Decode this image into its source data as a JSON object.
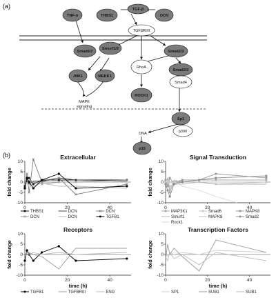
{
  "panel_a": {
    "label": "(a)",
    "nodes": {
      "tgfb": "TGF-β",
      "tnfa": "TNF-α",
      "thbs1": "THBS1",
      "dcn": "DCN",
      "receptor": "TGFβRI/II",
      "smad67": "Smad6/7",
      "smurf": "Smurf1/2",
      "smad23a": "Smad2/3",
      "jnk1": "JNK1",
      "mekk1": "MEKK1",
      "rhoa": "RhoA",
      "smad23b": "Smad2/3",
      "smad4": "Smad4",
      "rock1": "ROCK1",
      "mapk1": "MAPK",
      "mapk2": "signaling",
      "sp1": "Sp1",
      "dna": "DNA",
      "p300": "p300",
      "p15": "p15"
    }
  },
  "panel_b": {
    "label": "(b)"
  },
  "chart_data": [
    {
      "type": "line",
      "title": "Extracellular",
      "ylabel": "fold change",
      "xlabel": "",
      "xlim": [
        0,
        50
      ],
      "ylim": [
        -10,
        10
      ],
      "xticks": [
        "0",
        "20",
        "40"
      ],
      "yticks": [
        "10",
        "5",
        "0",
        "-5",
        "-10"
      ],
      "series": [
        {
          "name": "THBS1",
          "color": "#111111",
          "marker": "square",
          "x": [
            0,
            1,
            2,
            4,
            8,
            16,
            24,
            48
          ],
          "y": [
            -2,
            1,
            2,
            -1,
            1,
            1,
            1,
            1
          ]
        },
        {
          "name": "DCN",
          "color": "#444444",
          "marker": "none",
          "x": [
            0,
            1,
            2,
            4,
            8,
            16,
            24,
            48
          ],
          "y": [
            -1,
            0.5,
            -1,
            0.5,
            0.5,
            2,
            1,
            0.5
          ]
        },
        {
          "name": "DCN",
          "color": "#777777",
          "marker": "x",
          "x": [
            0,
            1,
            2,
            4,
            8,
            16,
            24,
            48
          ],
          "y": [
            -3,
            4,
            -5,
            11,
            0,
            2,
            -6,
            -1
          ]
        },
        {
          "name": "DCN",
          "color": "#999999",
          "marker": "x",
          "x": [
            0,
            1,
            2,
            4,
            8,
            16,
            24,
            48
          ],
          "y": [
            -1,
            1,
            0.5,
            0,
            -1,
            0,
            0,
            1
          ]
        },
        {
          "name": "DCN",
          "color": "#bbbbbb",
          "marker": "none",
          "x": [
            0,
            1,
            2,
            4,
            8,
            16,
            24,
            48
          ],
          "y": [
            0,
            -1,
            1,
            -2,
            -0.5,
            -2,
            -2,
            -3
          ]
        },
        {
          "name": "TGFB1",
          "color": "#000000",
          "marker": "circle",
          "x": [
            0,
            1,
            2,
            4,
            8,
            16,
            24,
            48
          ],
          "y": [
            -3,
            2,
            0,
            -3,
            1,
            4,
            -3,
            -2
          ]
        }
      ]
    },
    {
      "type": "line",
      "title": "Signal Transduction",
      "ylabel": "fold change",
      "xlabel": "",
      "xlim": [
        0,
        50
      ],
      "ylim": [
        -10,
        10
      ],
      "xticks": [
        "0",
        "20",
        "40"
      ],
      "yticks": [
        "10",
        "5",
        "0",
        "-5",
        "-10"
      ],
      "series": [
        {
          "name": "MAP3K1",
          "color": "#aaaaaa",
          "marker": "square",
          "x": [
            0,
            1,
            2,
            4,
            8,
            16,
            24,
            48
          ],
          "y": [
            0,
            1,
            -5,
            0,
            1,
            1,
            1,
            1
          ]
        },
        {
          "name": "Smad6",
          "color": "#c8c8c8",
          "marker": "square",
          "x": [
            0,
            1,
            2,
            4,
            8,
            16,
            24,
            48
          ],
          "y": [
            0,
            -1,
            -2,
            -1,
            0,
            0,
            -1,
            0
          ]
        },
        {
          "name": "MAPK8",
          "color": "#999999",
          "marker": "square",
          "x": [
            0,
            1,
            2,
            4,
            8,
            16,
            24,
            48
          ],
          "y": [
            1,
            -2,
            2,
            -1,
            1,
            1,
            4,
            2
          ]
        },
        {
          "name": "Smurf1",
          "color": "#b0b0b0",
          "marker": "none",
          "x": [
            0,
            1,
            2,
            4,
            8,
            16,
            24,
            48
          ],
          "y": [
            0,
            2,
            -4,
            1,
            0,
            0,
            -1,
            -1
          ]
        },
        {
          "name": "MAPK8",
          "color": "#c0c0c0",
          "marker": "none",
          "x": [
            0,
            1,
            2,
            4,
            8,
            16,
            24,
            48
          ],
          "y": [
            -1,
            0,
            -2,
            -1,
            -1,
            0,
            0,
            0
          ]
        },
        {
          "name": "Smad2",
          "color": "#8c8c8c",
          "marker": "circle",
          "x": [
            0,
            1,
            2,
            4,
            8,
            16,
            24,
            48
          ],
          "y": [
            -1,
            -4,
            -7,
            -1,
            0,
            1,
            2,
            3
          ]
        },
        {
          "name": "Rock1",
          "color": "#d6d6d6",
          "marker": "none",
          "x": [
            0,
            1,
            2,
            4,
            8,
            16,
            24,
            34
          ],
          "y": [
            0,
            1,
            -1,
            0,
            -2,
            -4,
            -7,
            -10
          ]
        }
      ]
    },
    {
      "type": "line",
      "title": "Receptors",
      "ylabel": "fold change",
      "xlabel": "time (h)",
      "xlim": [
        0,
        50
      ],
      "ylim": [
        -10,
        10
      ],
      "xticks": [
        "0",
        "20",
        "40"
      ],
      "yticks": [
        "10",
        "5",
        "0",
        "-5",
        "-10"
      ],
      "series": [
        {
          "name": "TGFB1",
          "color": "#000000",
          "marker": "circle",
          "x": [
            0,
            1,
            2,
            4,
            8,
            16,
            24,
            48
          ],
          "y": [
            -3,
            2,
            0,
            -3,
            1,
            4,
            -3,
            -2
          ]
        },
        {
          "name": "TGFBRIII",
          "color": "#999999",
          "marker": "none",
          "x": [
            0,
            1,
            2,
            4,
            8,
            16,
            24,
            48
          ],
          "y": [
            -1,
            0,
            1,
            0,
            -1,
            -7,
            3,
            3
          ]
        },
        {
          "name": "ENG",
          "color": "#bbbbbb",
          "marker": "none",
          "x": [
            0,
            1,
            2,
            4,
            8,
            16,
            24,
            48
          ],
          "y": [
            0,
            1,
            0,
            1,
            0,
            1,
            0,
            1
          ]
        }
      ]
    },
    {
      "type": "line",
      "title": "Transcription Factors",
      "ylabel": "fold change",
      "xlabel": "time (h)",
      "xlim": [
        0,
        50
      ],
      "ylim": [
        -10,
        10
      ],
      "xticks": [
        "0",
        "20",
        "40"
      ],
      "yticks": [
        "10",
        "5",
        "0",
        "-5",
        "-10"
      ],
      "series": [
        {
          "name": "SP1",
          "color": "#cccccc",
          "marker": "none",
          "x": [
            0,
            1,
            2,
            4,
            8,
            16,
            24,
            48
          ],
          "y": [
            0,
            -1,
            1,
            0,
            1,
            0,
            2,
            1
          ]
        },
        {
          "name": "SUB1",
          "color": "#999999",
          "marker": "none",
          "x": [
            0,
            1,
            2,
            4,
            8,
            16,
            24,
            48
          ],
          "y": [
            -2,
            5,
            0,
            3,
            -1,
            -8,
            7,
            1
          ]
        },
        {
          "name": "SUB1",
          "color": "#bbbbbb",
          "marker": "none",
          "x": [
            0,
            1,
            2,
            4,
            8,
            16,
            24,
            48
          ],
          "y": [
            -1,
            -3,
            1,
            -2,
            0,
            -5,
            1,
            -3
          ]
        }
      ]
    }
  ]
}
